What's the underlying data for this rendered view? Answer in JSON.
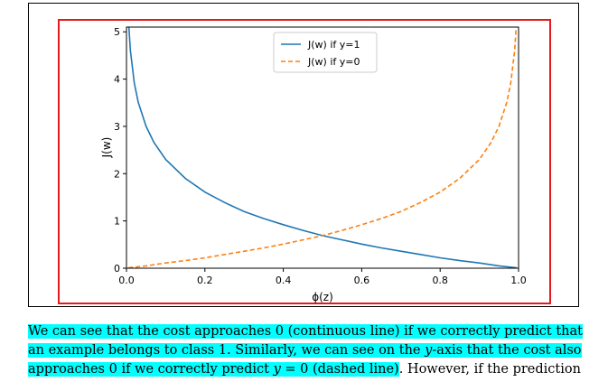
{
  "chart_data": {
    "type": "line",
    "xlabel": "ϕ(z)",
    "ylabel": "J(w)",
    "xlim": [
      0.0,
      1.0
    ],
    "ylim": [
      0,
      5.1
    ],
    "xticks": [
      "0.0",
      "0.2",
      "0.4",
      "0.6",
      "0.8",
      "1.0"
    ],
    "xtick_values": [
      0.0,
      0.2,
      0.4,
      0.6,
      0.8,
      1.0
    ],
    "yticks": [
      "0",
      "1",
      "2",
      "3",
      "4",
      "5"
    ],
    "ytick_values": [
      0,
      1,
      2,
      3,
      4,
      5
    ],
    "grid": false,
    "legend_position": "top-center",
    "series": [
      {
        "name": "J(w) if y=1",
        "style": "solid",
        "color": "#1f77b4",
        "x": [
          0.006,
          0.01,
          0.02,
          0.03,
          0.05,
          0.07,
          0.1,
          0.15,
          0.2,
          0.25,
          0.3,
          0.35,
          0.4,
          0.45,
          0.5,
          0.55,
          0.6,
          0.65,
          0.7,
          0.75,
          0.8,
          0.85,
          0.9,
          0.95,
          0.995
        ],
        "y": [
          5.12,
          4.61,
          3.91,
          3.51,
          3.0,
          2.66,
          2.3,
          1.9,
          1.61,
          1.39,
          1.2,
          1.05,
          0.92,
          0.8,
          0.69,
          0.6,
          0.51,
          0.43,
          0.36,
          0.29,
          0.22,
          0.16,
          0.11,
          0.05,
          0.01
        ]
      },
      {
        "name": "J(w) if y=0",
        "style": "dashed",
        "color": "#ff7f0e",
        "x": [
          0.005,
          0.05,
          0.1,
          0.15,
          0.2,
          0.25,
          0.3,
          0.35,
          0.4,
          0.45,
          0.5,
          0.55,
          0.6,
          0.65,
          0.7,
          0.75,
          0.8,
          0.85,
          0.9,
          0.93,
          0.95,
          0.97,
          0.98,
          0.99,
          0.994
        ],
        "y": [
          0.01,
          0.05,
          0.11,
          0.16,
          0.22,
          0.29,
          0.36,
          0.43,
          0.51,
          0.6,
          0.69,
          0.8,
          0.92,
          1.05,
          1.2,
          1.39,
          1.61,
          1.9,
          2.3,
          2.66,
          3.0,
          3.51,
          3.91,
          4.61,
          5.12
        ]
      }
    ]
  },
  "text": {
    "line1": "We can see that the cost approaches 0 (continuous line) if we correctly predict that",
    "line2": "an example belongs to class 1. Similarly, we can see on the ",
    "line2_italic": "y",
    "line2_rest": "-axis that the cost also",
    "line3_a": "approaches 0 if we correctly predict ",
    "line3_italic": "y",
    "line3_b": " = 0 (dashed line)",
    "line3_c": ". However, if the prediction"
  }
}
